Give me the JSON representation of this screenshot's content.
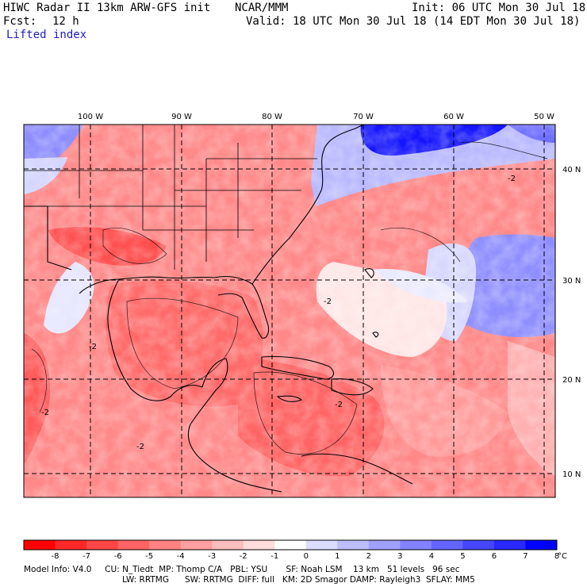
{
  "header": {
    "title": "HIWC Radar II 13km ARW-GFS init",
    "org": "NCAR/MMM",
    "init": "Init: 06 UTC Mon 30 Jul 18",
    "fcst_label": "Fcst:",
    "fcst_value": "12 h",
    "valid": "Valid: 18 UTC Mon 30 Jul 18 (14 EDT Mon 30 Jul 18)",
    "field": "Lifted index"
  },
  "map": {
    "lon_labels": [
      "100 W",
      "90 W",
      "80 W",
      "70 W",
      "60 W",
      "50 W"
    ],
    "lat_labels": [
      "40 N",
      "30 N",
      "20 N",
      "10 N"
    ],
    "contour_labels": [
      "-2",
      "-2",
      "-2",
      "-2",
      "-2",
      "-2"
    ]
  },
  "colorbar": {
    "ticks": [
      "-8",
      "-7",
      "-6",
      "-5",
      "-4",
      "-3",
      "-2",
      "-1",
      "0",
      "1",
      "2",
      "3",
      "4",
      "5",
      "6",
      "7",
      "8"
    ],
    "unit": "°C",
    "colors": [
      "#ff0000",
      "#ff2828",
      "#ff4646",
      "#ff6464",
      "#ff8282",
      "#ffa0a0",
      "#ffbebe",
      "#ffdcdc",
      "#ffffff",
      "#dcdcff",
      "#bebeff",
      "#a0a0ff",
      "#8282ff",
      "#6464ff",
      "#4646ff",
      "#2828ff",
      "#0000ff"
    ]
  },
  "footer": {
    "line1": "Model Info: V4.0     CU: N_Tiedt  MP: Thomp C/A   PBL: YSU       SF: Noah LSM    13 km   51 levels   96 sec",
    "line2": "LW: RRTMG      SW: RRTMG  DIFF: full   KM: 2D Smagor DAMP: Rayleigh3  SFLAY: MM5"
  }
}
